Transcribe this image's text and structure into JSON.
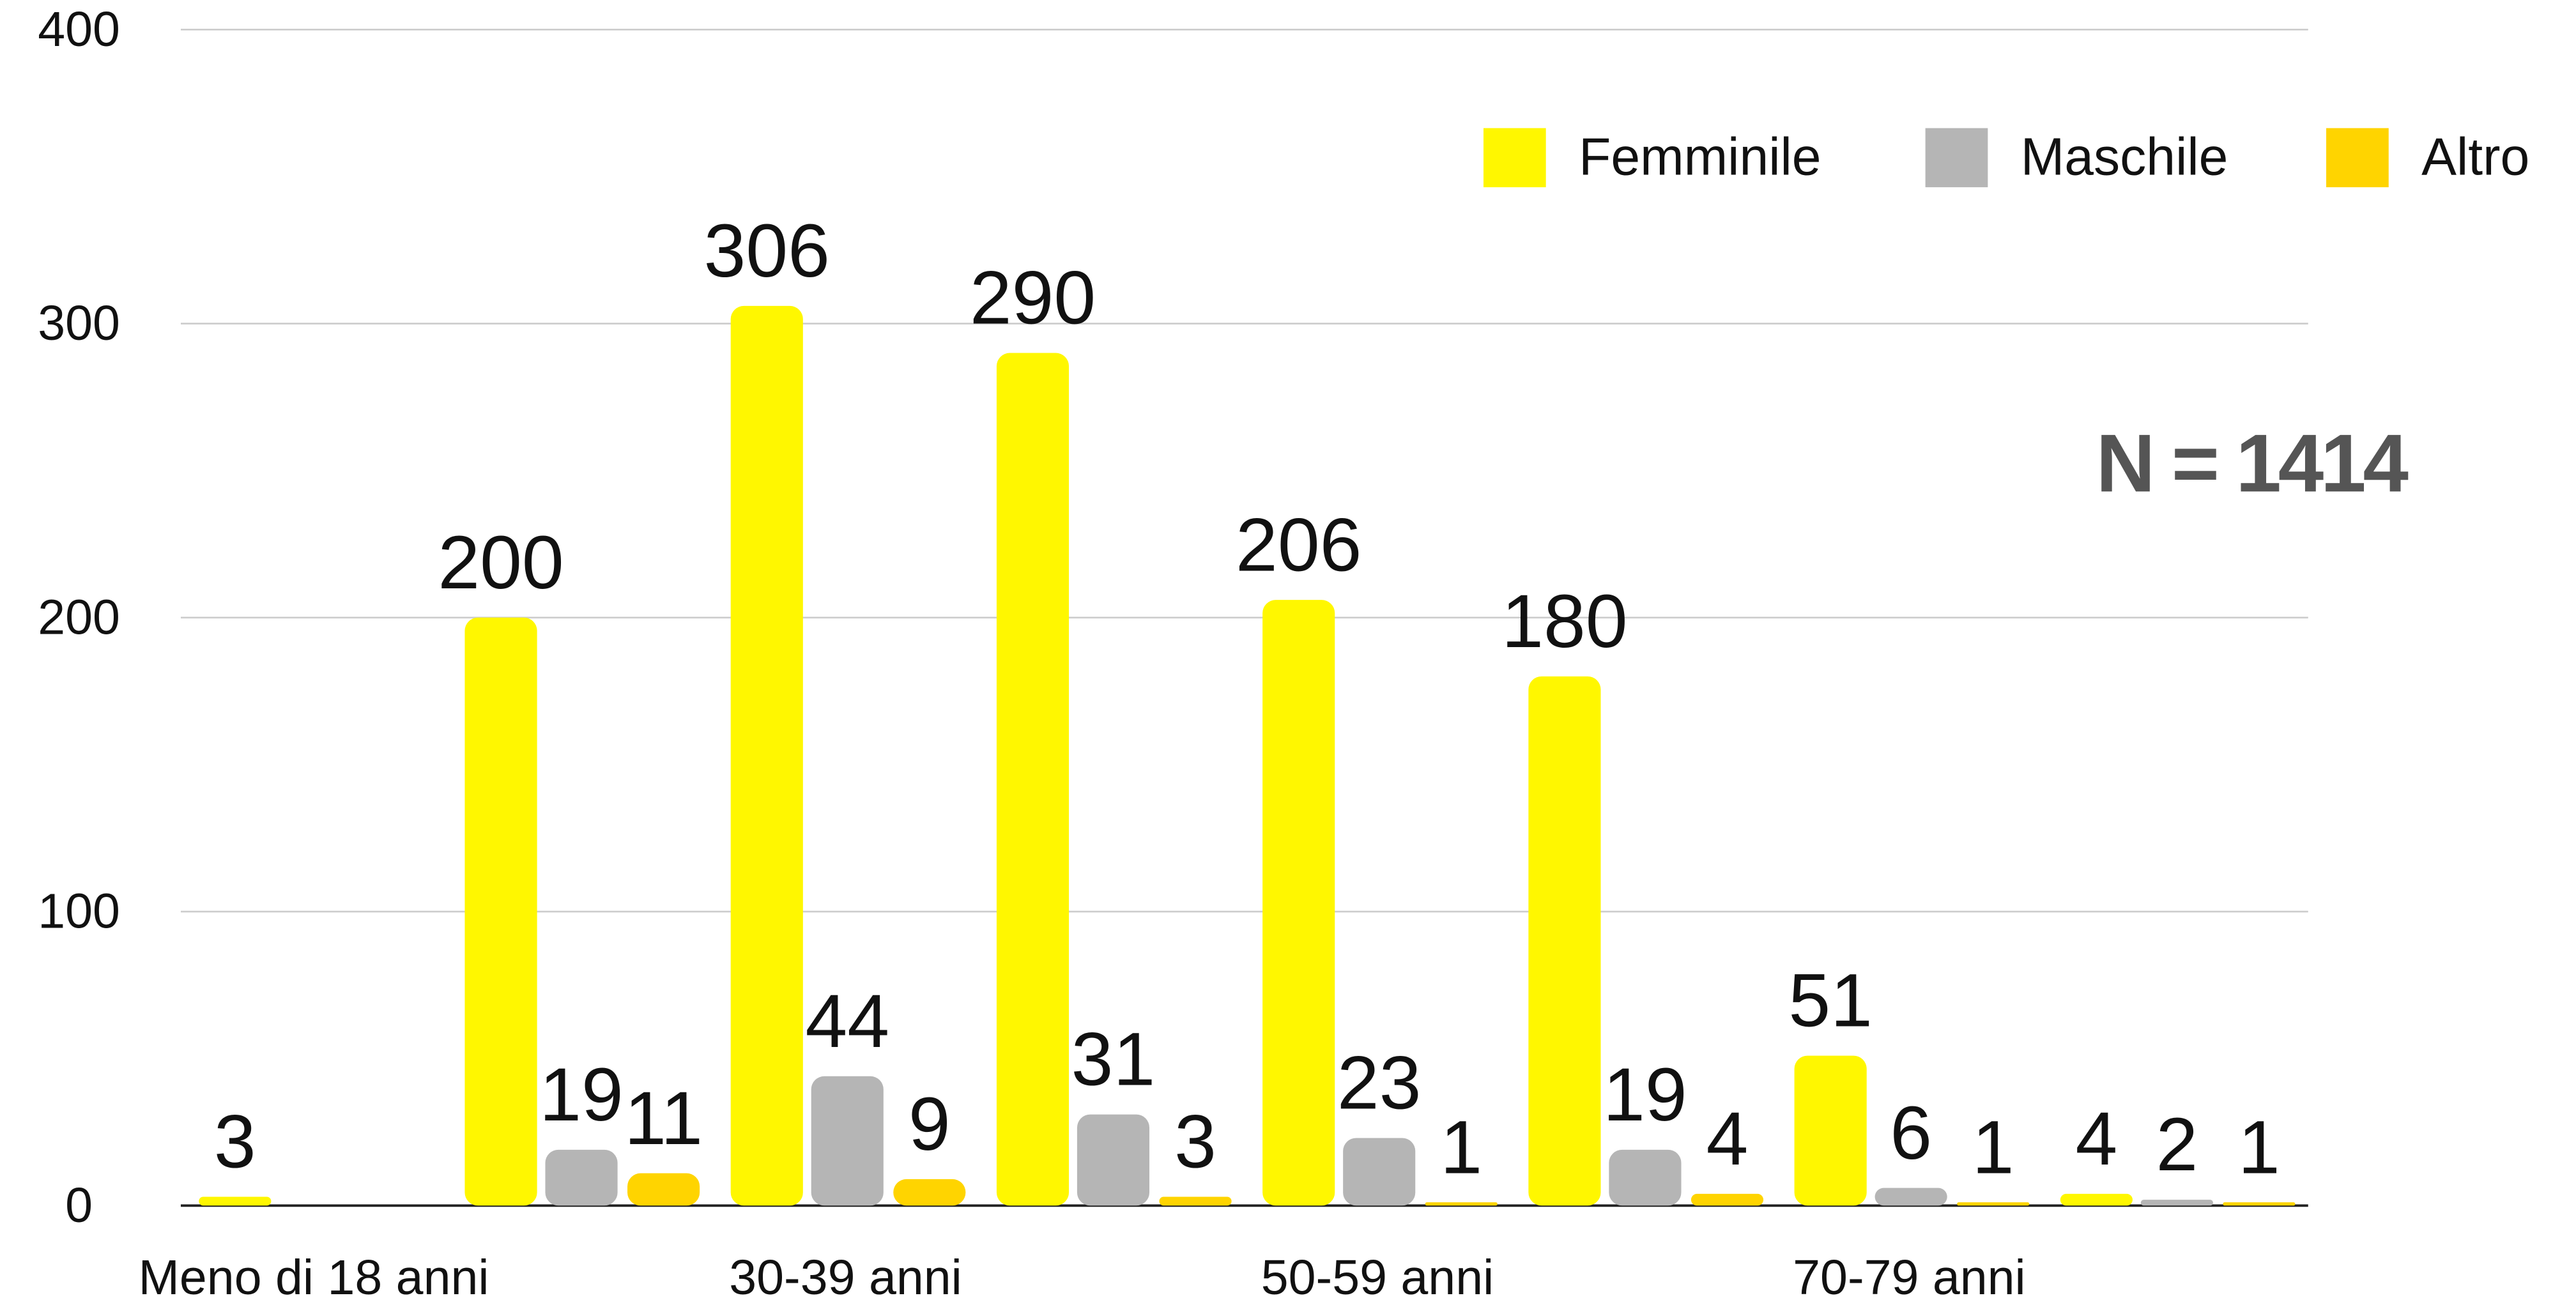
{
  "chart_data": {
    "type": "bar",
    "categories": [
      "Meno di 18 anni",
      null,
      "30-39 anni",
      null,
      "50-59 anni",
      null,
      "70-79 anni",
      null
    ],
    "series": [
      {
        "name": "Femminile",
        "color": "#fff700",
        "values": [
          3,
          200,
          306,
          290,
          206,
          180,
          51,
          4
        ]
      },
      {
        "name": "Maschile",
        "color": "#b5b5b5",
        "values": [
          null,
          19,
          44,
          31,
          23,
          19,
          6,
          2
        ]
      },
      {
        "name": "Altro",
        "color": "#ffd400",
        "values": [
          null,
          11,
          9,
          3,
          1,
          4,
          1,
          1
        ]
      }
    ],
    "ylim": [
      0,
      400
    ],
    "yticks": [
      0,
      100,
      200,
      300,
      400
    ],
    "grid": true,
    "legend": "top-right",
    "annotation": "N = 1414"
  }
}
